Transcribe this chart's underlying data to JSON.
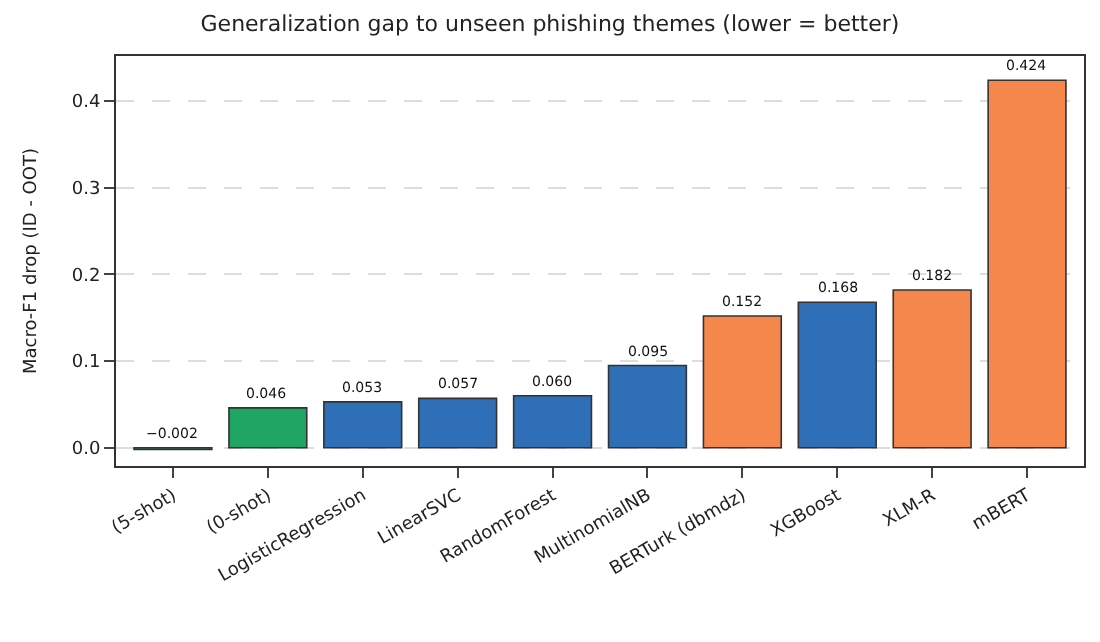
{
  "chart_data": {
    "type": "bar",
    "title": "Generalization gap to unseen phishing themes (lower = better)",
    "ylabel": "Macro-F1 drop (ID - OOT)",
    "categories": [
      "(5-shot)",
      "(0-shot)",
      "LogisticRegression",
      "LinearSVC",
      "RandomForest",
      "MultinomialNB",
      "BERTurk (dbmdz)",
      "XGBoost",
      "XLM-R",
      "mBERT"
    ],
    "values": [
      -0.002,
      0.046,
      0.053,
      0.057,
      0.06,
      0.095,
      0.152,
      0.168,
      0.182,
      0.424
    ],
    "value_labels": [
      "−0.002",
      "0.046",
      "0.053",
      "0.057",
      "0.060",
      "0.095",
      "0.152",
      "0.168",
      "0.182",
      "0.424"
    ],
    "colors": [
      "#1ea563",
      "#1ea563",
      "#2e6fb7",
      "#2e6fb7",
      "#2e6fb7",
      "#2e6fb7",
      "#f5874d",
      "#2e6fb7",
      "#f5874d",
      "#f5874d"
    ],
    "ylim": [
      -0.021,
      0.452
    ],
    "yticks": [
      {
        "value": 0,
        "label": "0.0"
      },
      0.1,
      0.2,
      0.3,
      0.4
    ],
    "grid": "y"
  }
}
